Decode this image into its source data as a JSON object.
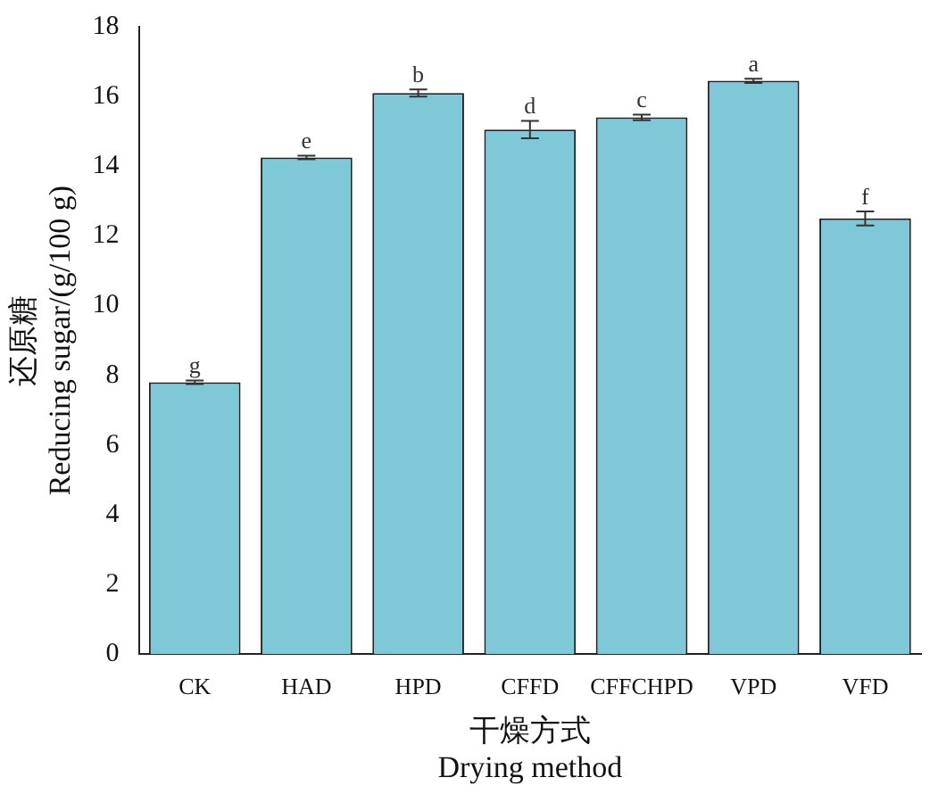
{
  "chart_data": {
    "type": "bar",
    "xlabel": "干燥方式\nDrying method",
    "ylabel": "还原糖\nReducing sugar/(g/100 g)",
    "categories": [
      "CK",
      "HAD",
      "HPD",
      "CFFD",
      "CFFCHPD",
      "VPD",
      "VFD"
    ],
    "values": [
      7.8,
      14.25,
      16.1,
      15.05,
      15.4,
      16.45,
      12.5
    ],
    "errors": [
      0.05,
      0.05,
      0.1,
      0.25,
      0.08,
      0.06,
      0.2
    ],
    "color": "#7ec8d8",
    "ylim": [
      0,
      18
    ],
    "yticks": [
      0,
      2,
      4,
      6,
      8,
      10,
      12,
      14,
      16,
      18
    ],
    "grid": false,
    "legend": false,
    "annotations": [
      {
        "text": "g",
        "x": "CK",
        "y": 7.85
      },
      {
        "text": "e",
        "x": "HAD",
        "y": 14.3
      },
      {
        "text": "b",
        "x": "HPD",
        "y": 16.2
      },
      {
        "text": "d",
        "x": "CFFD",
        "y": 15.3
      },
      {
        "text": "c",
        "x": "CFFCHPD",
        "y": 15.48
      },
      {
        "text": "a",
        "x": "VPD",
        "y": 16.51
      },
      {
        "text": "f",
        "x": "VFD",
        "y": 12.7
      }
    ]
  }
}
